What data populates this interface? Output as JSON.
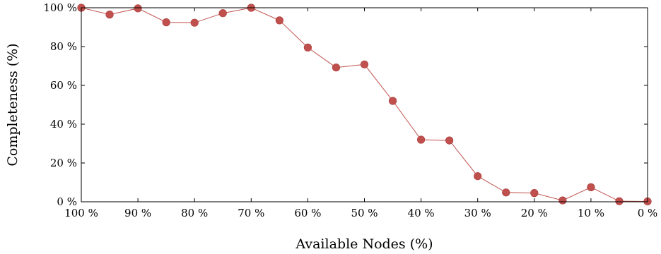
{
  "chart_data": {
    "type": "line",
    "title": "",
    "xlabel": "Available Nodes (%)",
    "ylabel": "Completeness (%)",
    "x_reversed": true,
    "xlim": [
      0,
      100
    ],
    "ylim": [
      0,
      100
    ],
    "grid": false,
    "legend": "none",
    "x_ticks": [
      100,
      90,
      80,
      70,
      60,
      50,
      40,
      30,
      20,
      10,
      0
    ],
    "x_tick_labels": [
      "100 %",
      "90 %",
      "80 %",
      "70 %",
      "60 %",
      "50 %",
      "40 %",
      "30 %",
      "20 %",
      "10 %",
      "0 %"
    ],
    "y_ticks": [
      0,
      20,
      40,
      60,
      80,
      100
    ],
    "y_tick_labels": [
      "0 %",
      "20 %",
      "40 %",
      "60 %",
      "80 %",
      "100 %"
    ],
    "series": [
      {
        "color": "#c0504d",
        "x": [
          100,
          95,
          90,
          85,
          80,
          75,
          70,
          65,
          60,
          55,
          50,
          45,
          40,
          35,
          30,
          25,
          20,
          15,
          10,
          5,
          0
        ],
        "y": [
          100,
          96.5,
          99.7,
          92.5,
          92.3,
          97.2,
          100,
          93.5,
          79.5,
          69.2,
          70.8,
          52,
          32,
          31.6,
          13.2,
          4.8,
          4.5,
          0.7,
          7.5,
          0.3,
          0.2
        ]
      }
    ]
  }
}
